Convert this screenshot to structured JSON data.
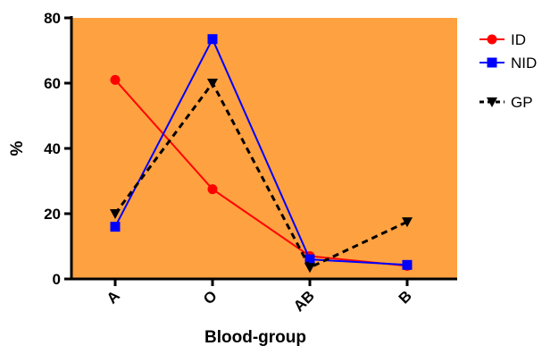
{
  "chart_data": {
    "type": "line",
    "categories": [
      "A",
      "O",
      "AB",
      "B"
    ],
    "series": [
      {
        "name": "ID",
        "values": [
          61,
          27.5,
          7,
          4
        ],
        "color": "#ff0000",
        "marker": "circle",
        "dash": "solid"
      },
      {
        "name": "NID",
        "values": [
          16,
          73.5,
          6,
          4.3
        ],
        "color": "#0000ff",
        "marker": "square",
        "dash": "solid"
      },
      {
        "name": "GP",
        "values": [
          20,
          60,
          3.5,
          17.5
        ],
        "color": "#000000",
        "marker": "triangle-down",
        "dash": "dashed"
      }
    ],
    "xlabel": "Blood-group",
    "ylabel": "%",
    "ylim": [
      0,
      80
    ],
    "yticks": [
      0,
      20,
      40,
      60,
      80
    ],
    "plot_background": "#fea140",
    "grid": false,
    "legend_position": "right"
  }
}
